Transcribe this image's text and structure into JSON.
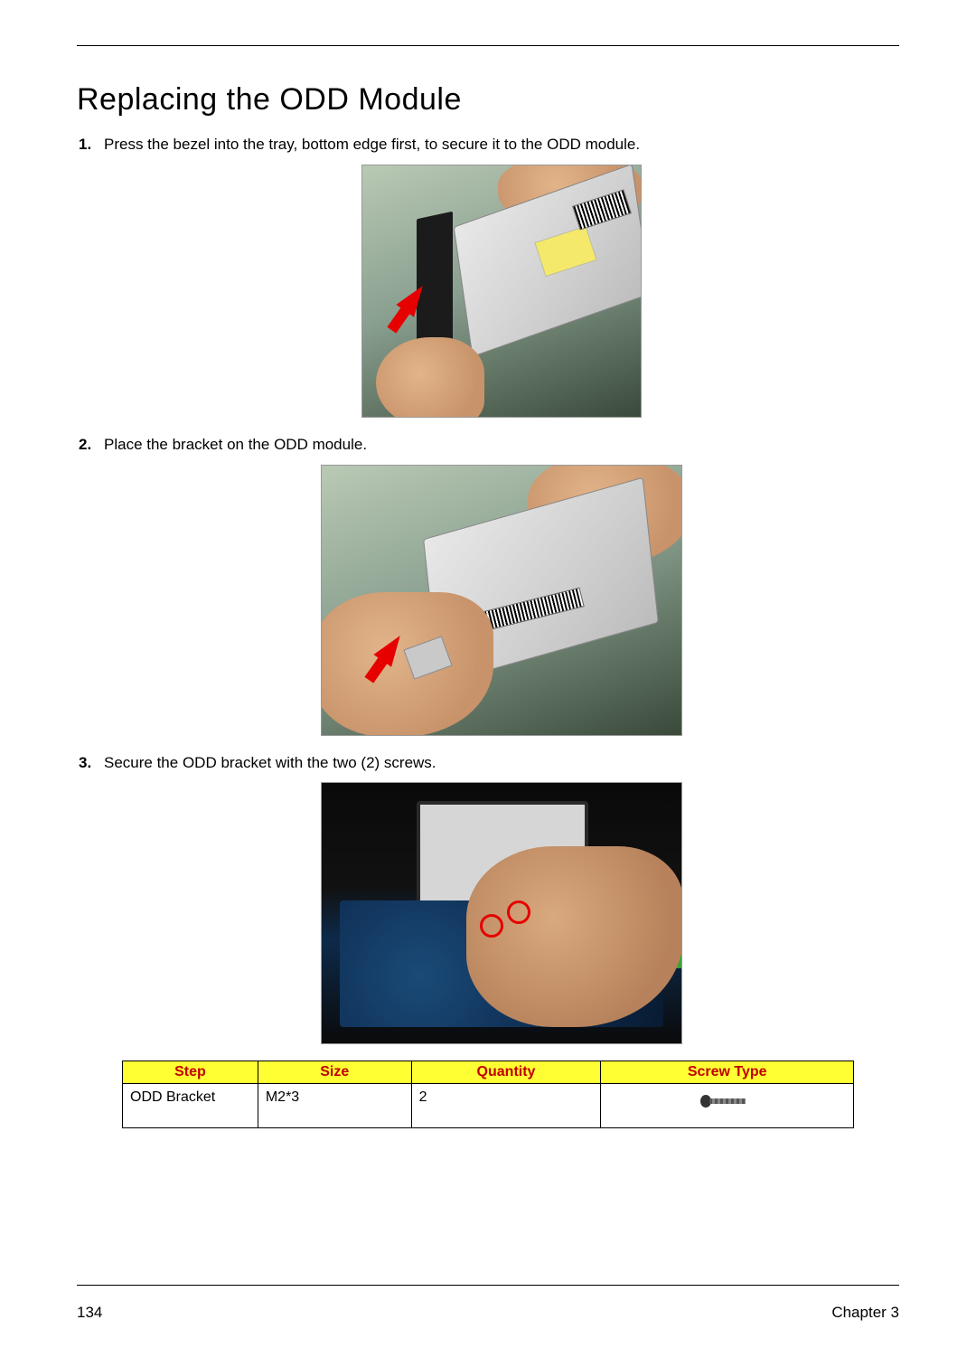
{
  "title": "Replacing the ODD Module",
  "steps": [
    {
      "text": "Press the bezel into the tray, bottom edge first, to secure it to the ODD module."
    },
    {
      "text": "Place the bracket on the ODD module."
    },
    {
      "text": "Secure the ODD bracket with the two (2) screws."
    }
  ],
  "table": {
    "headers": {
      "step": "Step",
      "size": "Size",
      "quantity": "Quantity",
      "screw_type": "Screw Type"
    },
    "rows": [
      {
        "step": "ODD Bracket",
        "size": "M2*3",
        "quantity": "2",
        "screw_type": ""
      }
    ],
    "header_bg": "#ffff33",
    "header_color": "#c00000"
  },
  "footer": {
    "page_number": "134",
    "chapter": "Chapter 3"
  },
  "colors": {
    "arrow": "#e60000",
    "text": "#000000",
    "background": "#ffffff"
  }
}
